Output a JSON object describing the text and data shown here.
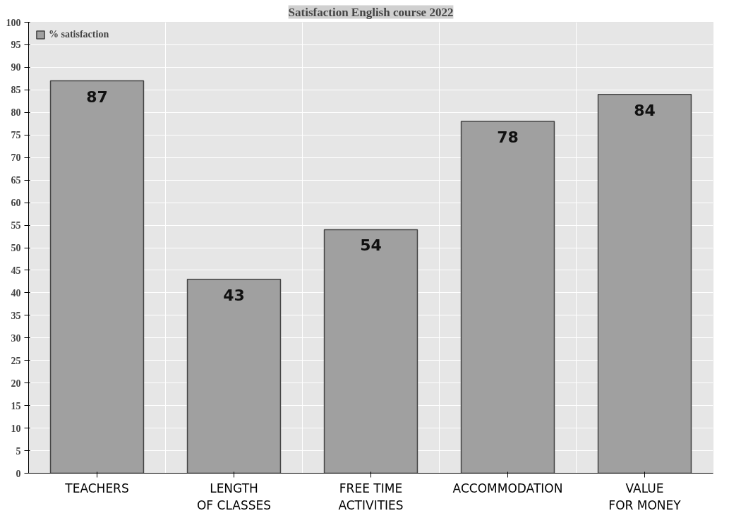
{
  "chart_data": {
    "type": "bar",
    "title": "Satisfaction English course 2022",
    "categories": [
      "TEACHERS",
      "LENGTH\nOF CLASSES",
      "FREE TIME\nACTIVITIES",
      "ACCOMMODATION",
      "VALUE\nFOR MONEY"
    ],
    "series": [
      {
        "name": "% satisfaction",
        "color": "#a0a0a0",
        "values": [
          87,
          43,
          54,
          78,
          84
        ]
      }
    ],
    "ylim": [
      0,
      100
    ],
    "yticks": [
      0,
      5,
      10,
      15,
      20,
      25,
      30,
      35,
      40,
      45,
      50,
      55,
      60,
      65,
      70,
      75,
      80,
      85,
      90,
      95,
      100
    ],
    "grid": true,
    "legend": "top left",
    "data_labels": true
  }
}
